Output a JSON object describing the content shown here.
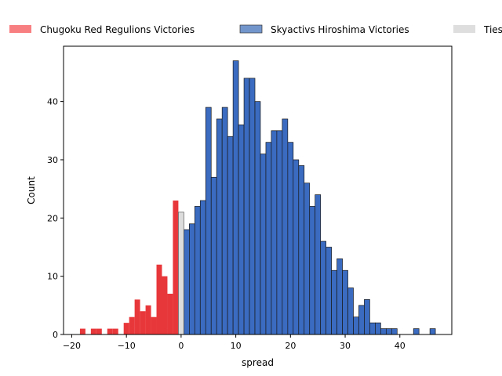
{
  "chart_data": {
    "type": "bar",
    "xlabel": "spread",
    "ylabel": "Count",
    "xlim": [
      -21.5,
      49.5
    ],
    "ylim": [
      0,
      49.5
    ],
    "xticks": [
      -20,
      -10,
      0,
      10,
      20,
      30,
      40
    ],
    "yticks": [
      0,
      10,
      20,
      30,
      40
    ],
    "legend_placement": "top",
    "series": [
      {
        "name": "Chugoku Red Regulions Victories",
        "color": "#e8373a",
        "legend_color": "#f87f81",
        "x": [
          -18,
          -16,
          -15,
          -13,
          -12,
          -10,
          -9,
          -8,
          -7,
          -6,
          -5,
          -4,
          -3,
          -2,
          -1
        ],
        "values": [
          1,
          1,
          1,
          1,
          1,
          2,
          3,
          6,
          4,
          5,
          3,
          12,
          10,
          7,
          23
        ]
      },
      {
        "name": "Skyactivs Hiroshima Victories",
        "color": "#3a6bc1",
        "legend_color": "#7295cc",
        "x": [
          1,
          2,
          3,
          4,
          5,
          6,
          7,
          8,
          9,
          10,
          11,
          12,
          13,
          14,
          15,
          16,
          17,
          18,
          19,
          20,
          21,
          22,
          23,
          24,
          25,
          26,
          27,
          28,
          29,
          30,
          31,
          32,
          33,
          34,
          35,
          36,
          37,
          38,
          39,
          43,
          46
        ],
        "values": [
          18,
          19,
          22,
          23,
          39,
          27,
          37,
          39,
          34,
          47,
          36,
          44,
          44,
          40,
          31,
          33,
          35,
          35,
          37,
          33,
          30,
          29,
          26,
          22,
          24,
          16,
          15,
          11,
          13,
          11,
          8,
          3,
          5,
          6,
          2,
          2,
          1,
          1,
          1,
          1,
          1
        ]
      },
      {
        "name": "Ties",
        "color": "#dcdcdc",
        "legend_color": "#dedede",
        "x": [
          0
        ],
        "values": [
          21
        ]
      }
    ]
  }
}
